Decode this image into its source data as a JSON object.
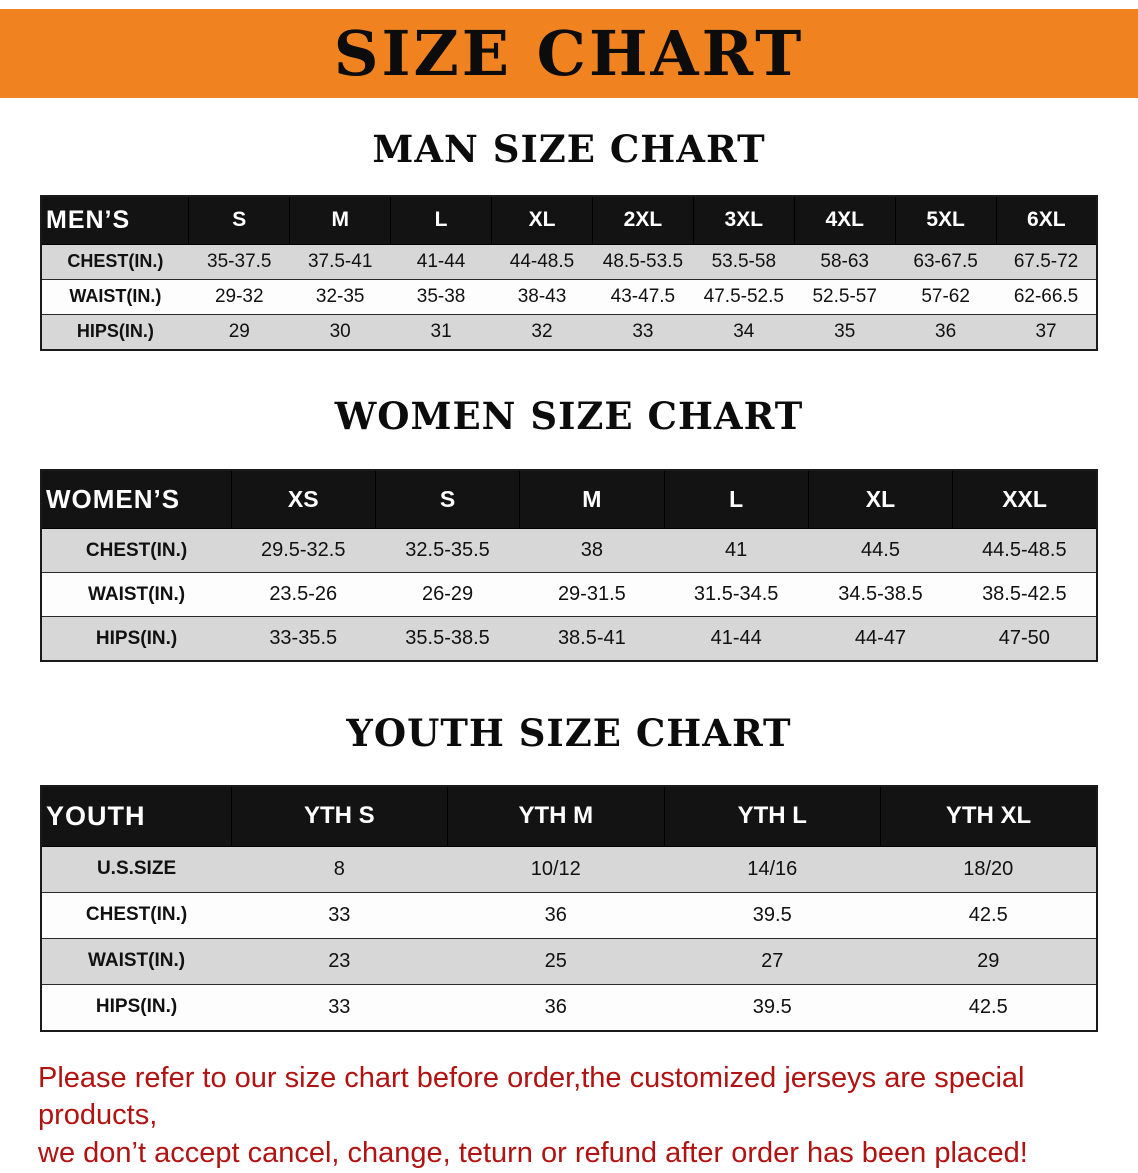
{
  "colors": {
    "banner-orange": "#F0831F",
    "header-black": "#131313",
    "row-shade": "#D7D7D7",
    "disclaimer-red": "#B11212"
  },
  "banner": {
    "title": "SIZE CHART"
  },
  "men": {
    "heading": "MAN SIZE CHART",
    "table": {
      "header": [
        "MEN’S",
        "S",
        "M",
        "L",
        "XL",
        "2XL",
        "3XL",
        "4XL",
        "5XL",
        "6XL"
      ],
      "rows": [
        [
          "CHEST(IN.)",
          "35-37.5",
          "37.5-41",
          "41-44",
          "44-48.5",
          "48.5-53.5",
          "53.5-58",
          "58-63",
          "63-67.5",
          "67.5-72"
        ],
        [
          "WAIST(IN.)",
          "29-32",
          "32-35",
          "35-38",
          "38-43",
          "43-47.5",
          "47.5-52.5",
          "52.5-57",
          "57-62",
          "62-66.5"
        ],
        [
          "HIPS(IN.)",
          "29",
          "30",
          "31",
          "32",
          "33",
          "34",
          "35",
          "36",
          "37"
        ]
      ]
    }
  },
  "women": {
    "heading": "WOMEN SIZE CHART",
    "table": {
      "header": [
        "WOMEN’S",
        "XS",
        "S",
        "M",
        "L",
        "XL",
        "XXL"
      ],
      "rows": [
        [
          "CHEST(IN.)",
          "29.5-32.5",
          "32.5-35.5",
          "38",
          "41",
          "44.5",
          "44.5-48.5"
        ],
        [
          "WAIST(IN.)",
          "23.5-26",
          "26-29",
          "29-31.5",
          "31.5-34.5",
          "34.5-38.5",
          "38.5-42.5"
        ],
        [
          "HIPS(IN.)",
          "33-35.5",
          "35.5-38.5",
          "38.5-41",
          "41-44",
          "44-47",
          "47-50"
        ]
      ]
    }
  },
  "youth": {
    "heading": "YOUTH SIZE CHART",
    "table": {
      "header": [
        "YOUTH",
        "YTH S",
        "YTH M",
        "YTH L",
        "YTH XL"
      ],
      "rows": [
        [
          "U.S.SIZE",
          "8",
          "10/12",
          "14/16",
          "18/20"
        ],
        [
          "CHEST(IN.)",
          "33",
          "36",
          "39.5",
          "42.5"
        ],
        [
          "WAIST(IN.)",
          "23",
          "25",
          "27",
          "29"
        ],
        [
          "HIPS(IN.)",
          "33",
          "36",
          "39.5",
          "42.5"
        ]
      ]
    }
  },
  "disclaimer": {
    "lines": [
      "Please refer to our size chart before order,the customized jerseys are special products,",
      "we don’t accept cancel, change, teturn or refund after order has been placed!"
    ]
  }
}
